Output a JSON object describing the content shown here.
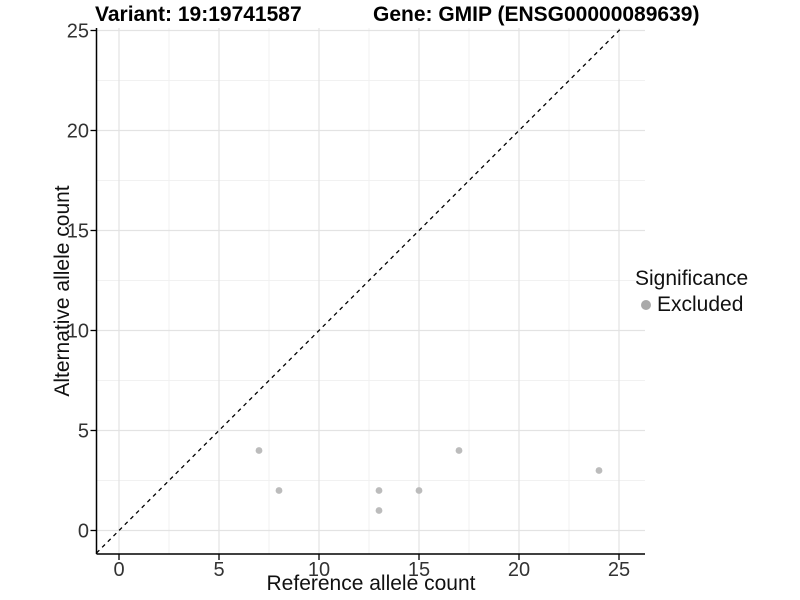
{
  "chart_data": {
    "type": "scatter",
    "title_left": "Variant: 19:19741587",
    "title_right": "Gene: GMIP (ENSG00000089639)",
    "xlabel": "Reference allele count",
    "ylabel": "Alternative allele count",
    "xlim": [
      0,
      25
    ],
    "ylim": [
      0,
      25
    ],
    "x_ticks": [
      0,
      5,
      10,
      15,
      20,
      25
    ],
    "y_ticks": [
      0,
      5,
      10,
      15,
      20,
      25
    ],
    "minor_grid_step": 2.5,
    "grid": true,
    "points": [
      {
        "x": 7,
        "y": 4,
        "significance": "Excluded"
      },
      {
        "x": 8,
        "y": 2,
        "significance": "Excluded"
      },
      {
        "x": 13,
        "y": 1,
        "significance": "Excluded"
      },
      {
        "x": 13,
        "y": 2,
        "significance": "Excluded"
      },
      {
        "x": 15,
        "y": 2,
        "significance": "Excluded"
      },
      {
        "x": 17,
        "y": 4,
        "significance": "Excluded"
      },
      {
        "x": 24,
        "y": 3,
        "significance": "Excluded"
      }
    ],
    "identity_line": {
      "type": "dashed",
      "slope": 1,
      "intercept": 0,
      "color": "#000000"
    },
    "point_color": "#bcbcbc",
    "colors": {
      "grid_major": "#e3e3e3",
      "grid_minor": "#f1f1f1",
      "axis_line": "#000000",
      "tick_label": "#333333",
      "legend_dot": "#a9a9a9"
    },
    "legend": {
      "position": "right",
      "title": "Significance",
      "items": [
        {
          "label": "Excluded",
          "color": "#a9a9a9"
        }
      ]
    }
  }
}
